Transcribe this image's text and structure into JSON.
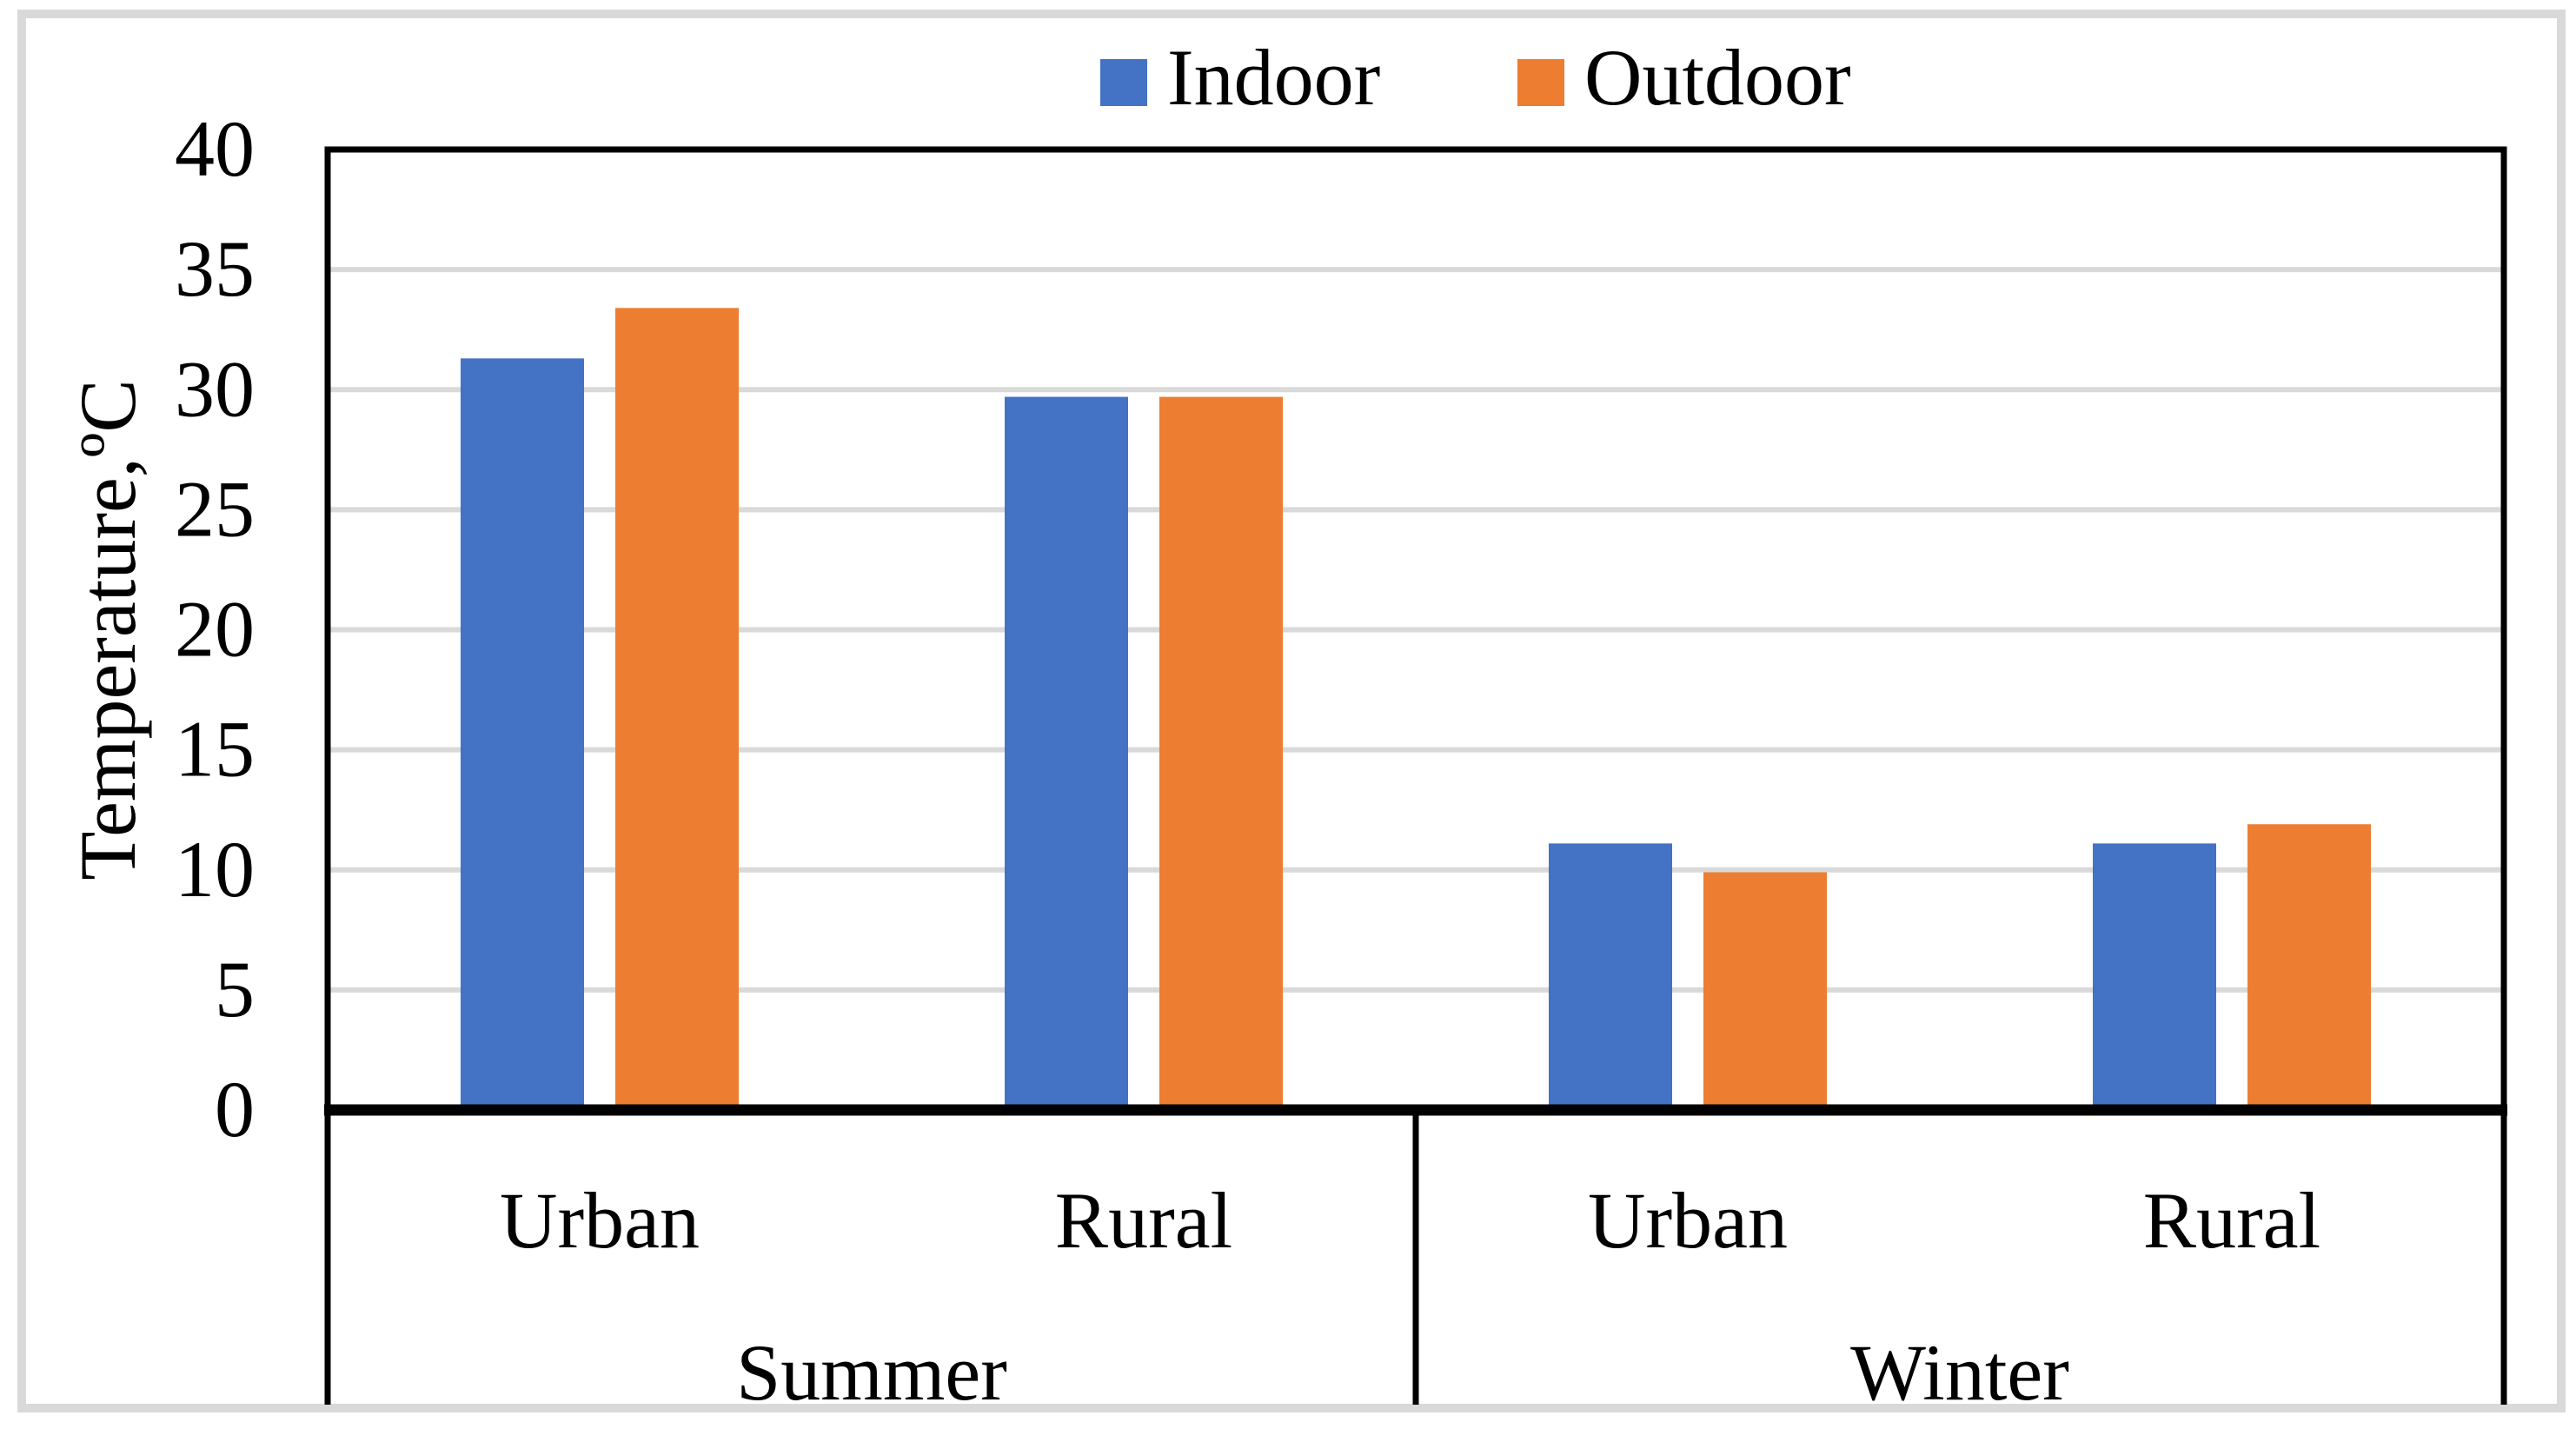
{
  "figure": {
    "background_color": "#FFFFFF",
    "frame_color": "#D9D9D9"
  },
  "chart_data": {
    "type": "bar",
    "title": "",
    "ylabel": "Temperature,ºC",
    "xlabel": "",
    "ylim": [
      0,
      40
    ],
    "ytick_step": 5,
    "ytick_labels": [
      "0",
      "5",
      "10",
      "15",
      "20",
      "25",
      "30",
      "35",
      "40"
    ],
    "grid": "horizontal",
    "gridline_color": "#D9D9D9",
    "axis_color": "#000000",
    "legend_position": "top-center",
    "legend": [
      "Indoor",
      "Outdoor"
    ],
    "groups": [
      "Summer",
      "Winter"
    ],
    "categories": [
      {
        "group": "Summer",
        "label": "Urban"
      },
      {
        "group": "Summer",
        "label": "Rural"
      },
      {
        "group": "Winter",
        "label": "Urban"
      },
      {
        "group": "Winter",
        "label": "Rural"
      }
    ],
    "series": [
      {
        "name": "Indoor",
        "color": "#4472C4",
        "values": [
          31.3,
          29.7,
          11.1,
          11.1
        ]
      },
      {
        "name": "Outdoor",
        "color": "#ED7D31",
        "values": [
          33.4,
          29.7,
          9.9,
          11.9
        ]
      }
    ]
  }
}
